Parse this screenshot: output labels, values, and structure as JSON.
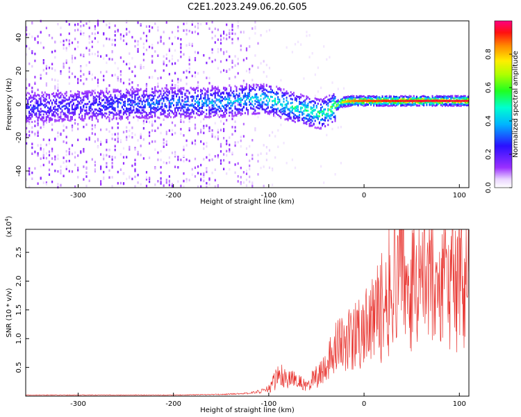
{
  "figure": {
    "title": "C2E1.2023.249.06.20.G05"
  },
  "chart_data": [
    {
      "type": "heatmap",
      "title": "C2E1.2023.249.06.20.G05",
      "xlabel": "Height of straight line (km)",
      "ylabel": "Frequency (Hz)",
      "xlim": [
        -355,
        110
      ],
      "ylim": [
        -50,
        50
      ],
      "xticks": [
        -300,
        -200,
        -100,
        0,
        100
      ],
      "yticks": [
        -40,
        -20,
        0,
        20,
        40
      ],
      "colorbar": {
        "label": "Normalized spectral amplitude",
        "range": [
          0.0,
          1.0
        ],
        "ticks": [
          0.0,
          0.2,
          0.4,
          0.6,
          0.8
        ],
        "colormap": "rainbow (white → purple → blue → cyan → green → yellow → orange → red → magenta)"
      },
      "ridge": {
        "description": "Dominant spectral ridge (frequency offset vs height)",
        "x": [
          -355,
          -300,
          -250,
          -200,
          -150,
          -120,
          -100,
          -80,
          -60,
          -45,
          -35,
          -25,
          -15,
          0,
          50,
          110
        ],
        "y": [
          -2,
          -1,
          0,
          1,
          1,
          3,
          3,
          -1,
          -4,
          -6,
          -3,
          1,
          2,
          2,
          2,
          2
        ],
        "peak_amplitude": [
          0.2,
          0.2,
          0.25,
          0.3,
          0.35,
          0.4,
          0.45,
          0.45,
          0.5,
          0.5,
          0.6,
          0.75,
          0.85,
          0.9,
          0.95,
          0.95
        ]
      }
    },
    {
      "type": "line",
      "xlabel": "Height of straight line (km)",
      "ylabel": "SNR (10 * v/v)",
      "y_multiplier": "(x10",
      "y_multiplier_exp": "4",
      "y_multiplier_close": ")",
      "xlim": [
        -355,
        110
      ],
      "ylim": [
        0,
        2.9
      ],
      "xticks": [
        -300,
        -200,
        -100,
        0,
        100
      ],
      "yticks": [
        0.5,
        1.0,
        1.5,
        2.0,
        2.5
      ],
      "series": [
        {
          "color": "#e8332e",
          "x": [
            -355,
            -300,
            -250,
            -200,
            -150,
            -120,
            -100,
            -90,
            -80,
            -70,
            -60,
            -50,
            -40,
            -30,
            -20,
            -10,
            0,
            10,
            20,
            30,
            40,
            50,
            60,
            70,
            80,
            90,
            100,
            110
          ],
          "y": [
            0.02,
            0.02,
            0.02,
            0.02,
            0.03,
            0.05,
            0.12,
            0.35,
            0.3,
            0.25,
            0.18,
            0.35,
            0.55,
            0.8,
            0.9,
            1.0,
            1.1,
            1.3,
            1.6,
            1.9,
            2.2,
            1.9,
            1.8,
            2.1,
            1.7,
            2.0,
            1.9,
            1.8
          ]
        }
      ]
    }
  ]
}
